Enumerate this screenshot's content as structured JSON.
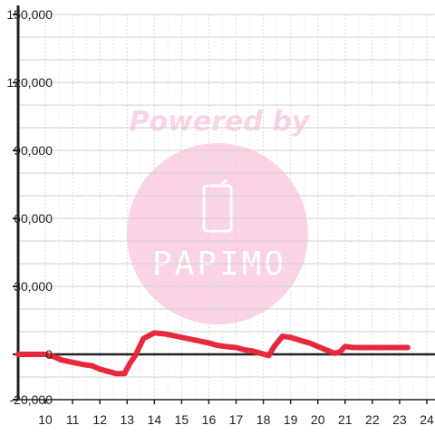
{
  "chart_data": {
    "type": "line",
    "title": "",
    "xlabel": "",
    "ylabel": "",
    "xlim": [
      9,
      24.3
    ],
    "ylim": [
      -20000,
      150000
    ],
    "grid": true,
    "x_ticks": [
      10,
      11,
      12,
      13,
      14,
      15,
      16,
      17,
      18,
      19,
      20,
      21,
      22,
      23,
      24
    ],
    "y_ticks": [
      150000,
      120000,
      90000,
      60000,
      30000,
      0,
      -20000
    ],
    "y_tick_labels": [
      "150,000",
      "120,000",
      "90,000",
      "60,000",
      "30,000",
      "0",
      "-20,000"
    ],
    "series": [
      {
        "color": "#e8283c",
        "x": [
          9,
          10,
          10.3,
          10.6,
          11,
          11.4,
          11.7,
          12,
          12.3,
          12.6,
          12.9,
          13.1,
          13.3,
          13.6,
          14,
          14.4,
          14.8,
          15.2,
          15.6,
          16,
          16.3,
          16.6,
          17,
          17.3,
          17.6,
          17.9,
          18.2,
          18.4,
          18.7,
          19,
          19.4,
          19.7,
          20,
          20.2,
          20.4,
          20.6,
          20.8,
          21,
          21.3,
          21.6,
          22,
          22.4,
          22.8,
          23.3
        ],
        "y": [
          0,
          0,
          -1000,
          -2500,
          -3500,
          -4500,
          -5000,
          -6500,
          -7500,
          -8500,
          -8500,
          -4000,
          -500,
          7000,
          9500,
          9000,
          8000,
          7000,
          6000,
          5000,
          4000,
          3500,
          3000,
          2000,
          1500,
          500,
          -500,
          3500,
          8000,
          7500,
          6000,
          5000,
          3500,
          2500,
          1500,
          500,
          1000,
          3500,
          3000,
          3000,
          3000,
          3000,
          3000,
          3000
        ]
      }
    ]
  },
  "watermark": {
    "text": "Powered by",
    "logo_text": "PAPIMO",
    "color": "#fbd3e6"
  },
  "colors": {
    "axis": "#222222",
    "grid_major": "#cfcfcf",
    "grid_minor": "#d8d8d8"
  }
}
